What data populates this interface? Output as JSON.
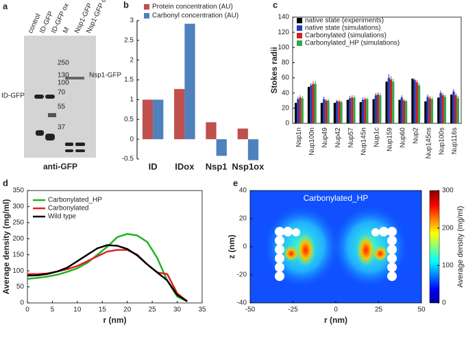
{
  "blot": {
    "panel": "a",
    "lanes": [
      "control",
      "ID-GFP",
      "ID-GFP ox",
      "M",
      "Nsp1-GFP",
      "Nsp1-GFP ox"
    ],
    "markers": [
      250,
      130,
      100,
      70,
      55,
      37
    ],
    "band_labels": [
      "Nsp1-GFP",
      "ID-GFP"
    ],
    "antibody": "anti-GFP"
  },
  "chart_data": [
    {
      "panel": "b",
      "type": "bar",
      "categories": [
        "ID",
        "IDox",
        "Nsp1",
        "Nsp1ox"
      ],
      "series": [
        {
          "name": "Protein concentration (AU)",
          "color": "#c0504d",
          "values": [
            1,
            1.27,
            0.43,
            0.27
          ]
        },
        {
          "name": "Carbonyl concentration (AU)",
          "color": "#4f81bd",
          "values": [
            1,
            2.92,
            -0.42,
            -0.53
          ]
        }
      ],
      "ylim": [
        -0.5,
        3
      ],
      "yticks": [
        -0.5,
        0,
        0.5,
        1,
        1.5,
        2,
        2.5,
        3
      ]
    },
    {
      "panel": "c",
      "type": "bar",
      "ylabel": "Stokes radii",
      "categories": [
        "Nsp1n",
        "Nup100n",
        "Nup49",
        "Nup42",
        "Nup57",
        "Nup145n",
        "Nup1c",
        "Nup159",
        "Nup60",
        "Nup2",
        "Nup145ns",
        "Nup100s",
        "Nup116s"
      ],
      "series": [
        {
          "name": "native state (experiments)",
          "color": "#000000",
          "values": [
            27,
            48,
            27,
            27,
            31,
            28,
            32,
            55,
            31,
            59,
            29,
            34,
            38
          ]
        },
        {
          "name": "native state (simulations)",
          "color": "#1f3fbf",
          "values": [
            32,
            50,
            32,
            29,
            33,
            31,
            37,
            60,
            34,
            57,
            35,
            40,
            42
          ],
          "errors": [
            3,
            3,
            3,
            2,
            3,
            3,
            3,
            5,
            3,
            2,
            3,
            3,
            3
          ]
        },
        {
          "name": "Carbonylated (simulations)",
          "color": "#cc2222",
          "values": [
            34,
            52,
            30,
            29,
            34,
            32,
            38,
            58,
            30,
            54,
            33,
            37,
            37
          ],
          "errors": [
            3,
            3,
            2,
            2,
            3,
            2,
            3,
            4,
            2,
            3,
            3,
            3,
            3
          ]
        },
        {
          "name": "Carbonylated_HP (simulations)",
          "color": "#2ea84a",
          "values": [
            33,
            52,
            30,
            28,
            34,
            32,
            37,
            55,
            29,
            50,
            32,
            35,
            33
          ],
          "errors": [
            3,
            4,
            2,
            2,
            3,
            2,
            3,
            4,
            2,
            3,
            3,
            3,
            3
          ]
        }
      ],
      "ylim": [
        0,
        140
      ],
      "yticks": [
        0,
        20,
        40,
        60,
        80,
        100,
        120,
        140
      ]
    },
    {
      "panel": "d",
      "type": "line",
      "xlabel": "r (nm)",
      "ylabel": "Average density (mg/ml)",
      "x": [
        0,
        2,
        4,
        6,
        8,
        10,
        12,
        14,
        16,
        18,
        20,
        22,
        24,
        26,
        28,
        30,
        32
      ],
      "series": [
        {
          "name": "Carbonylated_HP",
          "color": "#22b022",
          "values": [
            75,
            78,
            82,
            88,
            97,
            108,
            125,
            150,
            175,
            205,
            215,
            210,
            190,
            140,
            70,
            20,
            5
          ]
        },
        {
          "name": "Carbonylated",
          "color": "#e02020",
          "values": [
            90,
            90,
            92,
            98,
            105,
            115,
            130,
            145,
            160,
            165,
            165,
            150,
            120,
            95,
            90,
            30,
            5
          ]
        },
        {
          "name": "Wild type",
          "color": "#000000",
          "values": [
            85,
            86,
            90,
            98,
            110,
            130,
            150,
            170,
            180,
            178,
            168,
            148,
            120,
            95,
            70,
            25,
            5
          ]
        }
      ],
      "xlim": [
        0,
        35
      ],
      "xticks": [
        0,
        5,
        10,
        15,
        20,
        25,
        30,
        35
      ],
      "ylim": [
        0,
        350
      ],
      "yticks": [
        0,
        50,
        100,
        150,
        200,
        250,
        300,
        350
      ]
    },
    {
      "panel": "e",
      "type": "heatmap",
      "title": "Carbonylated_HP",
      "xlabel": "r (nm)",
      "ylabel": "z (nm)",
      "xlim": [
        -50,
        50
      ],
      "xticks": [
        -50,
        -25,
        0,
        25,
        50
      ],
      "ylim": [
        -40,
        40
      ],
      "yticks": [
        -40,
        -20,
        0,
        20,
        40
      ],
      "colorbar": {
        "label": "Average density (mg/ml)",
        "lim": [
          0,
          300
        ],
        "ticks": [
          0,
          100,
          200,
          300
        ]
      }
    }
  ]
}
